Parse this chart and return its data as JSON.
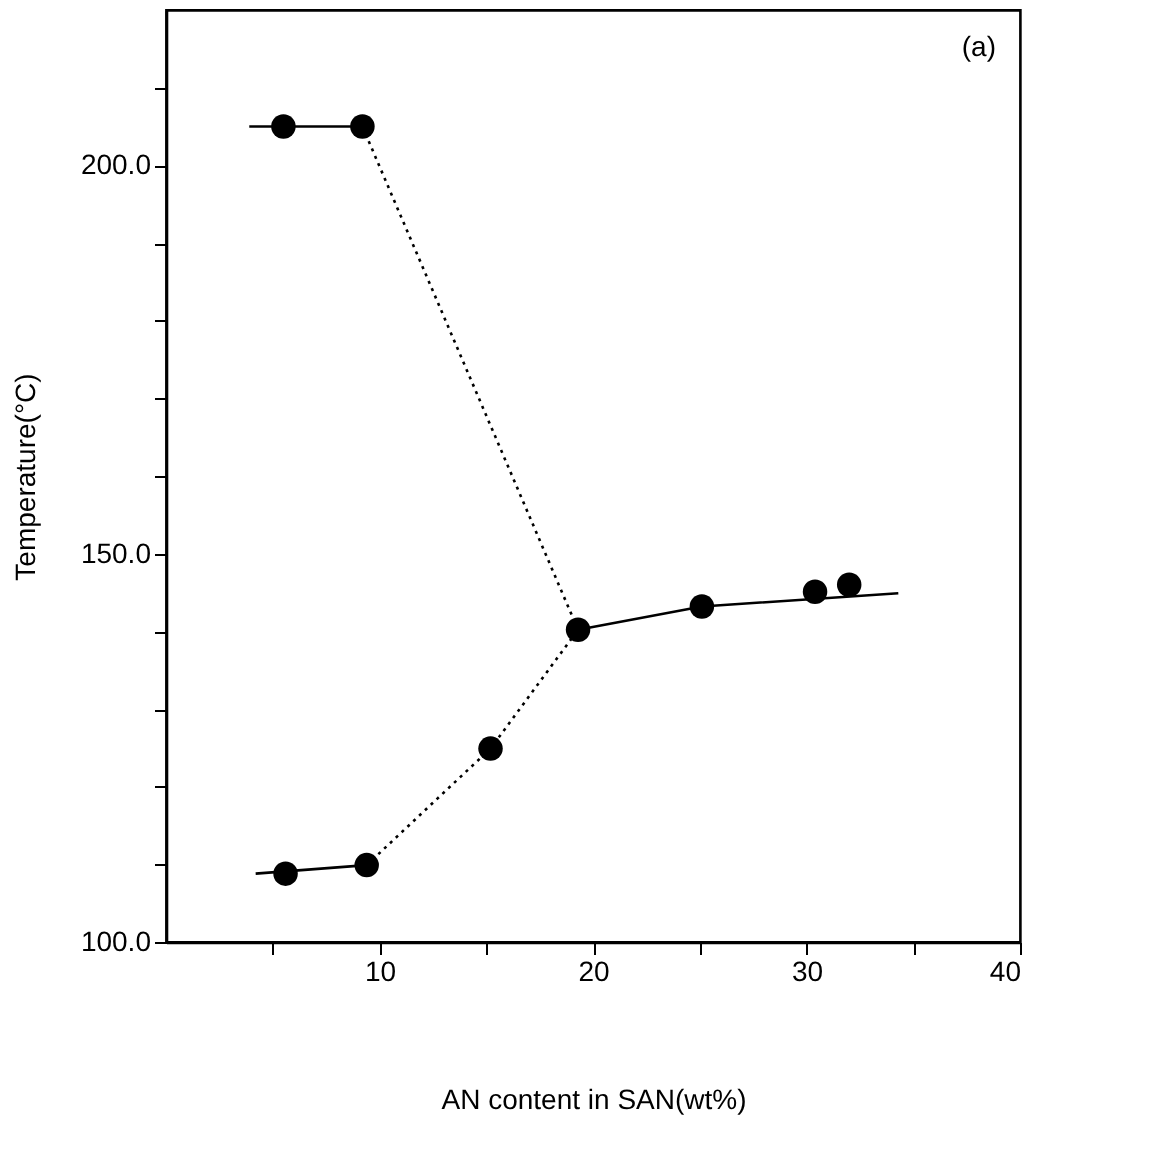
{
  "chart_data": {
    "type": "line",
    "xlabel": "AN content in SAN(wt%)",
    "ylabel": "Temperature(°C)",
    "xlim": [
      0,
      40
    ],
    "ylim": [
      100,
      220
    ],
    "xticks": [
      {
        "value": 5,
        "label": null
      },
      10,
      {
        "value": 15,
        "label": null
      },
      20,
      {
        "value": 25,
        "label": null
      },
      30,
      {
        "value": 35,
        "label": null
      },
      40
    ],
    "yticks": [
      {
        "value": 100,
        "label": "100.0"
      },
      {
        "value": 110,
        "label": null
      },
      {
        "value": 120,
        "label": null
      },
      {
        "value": 130,
        "label": null
      },
      {
        "value": 140,
        "label": null
      },
      {
        "value": 150,
        "label": "150.0"
      },
      {
        "value": 160,
        "label": null
      },
      {
        "value": 170,
        "label": null
      },
      {
        "value": 180,
        "label": null
      },
      {
        "value": 190,
        "label": null
      },
      {
        "value": 200,
        "label": "200.0"
      },
      {
        "value": 210,
        "label": null
      }
    ],
    "grid": false,
    "annotations": [
      "(a)"
    ],
    "series": [
      {
        "line_style": "solid",
        "marker": "none",
        "color": "#000000",
        "x": [
          3.9,
          9.2
        ],
        "values": [
          205.0,
          205.0
        ]
      },
      {
        "line_style": "solid",
        "marker": "none",
        "color": "#000000",
        "x": [
          4.2,
          9.4
        ],
        "values": [
          108.8,
          109.9
        ]
      },
      {
        "line_style": "solid",
        "marker": "none",
        "color": "#000000",
        "x": [
          19.3,
          25.1,
          34.3
        ],
        "values": [
          140.2,
          143.2,
          144.9
        ]
      },
      {
        "line_style": "dotted",
        "marker": "none",
        "color": "#000000",
        "x": [
          9.2,
          19.3
        ],
        "values": [
          205.0,
          140.2
        ]
      },
      {
        "line_style": "dotted",
        "marker": "none",
        "color": "#000000",
        "x": [
          9.4,
          15.2,
          19.3
        ],
        "values": [
          109.9,
          124.9,
          140.2
        ]
      },
      {
        "type": "scatter",
        "marker": "circle",
        "color": "#000000",
        "x": [
          5.5,
          9.2,
          5.6,
          9.4,
          15.2,
          19.3,
          25.1,
          30.4,
          32.0
        ],
        "values": [
          205.0,
          205.0,
          108.8,
          109.9,
          124.9,
          140.2,
          143.2,
          145.1,
          146.0
        ]
      }
    ]
  }
}
